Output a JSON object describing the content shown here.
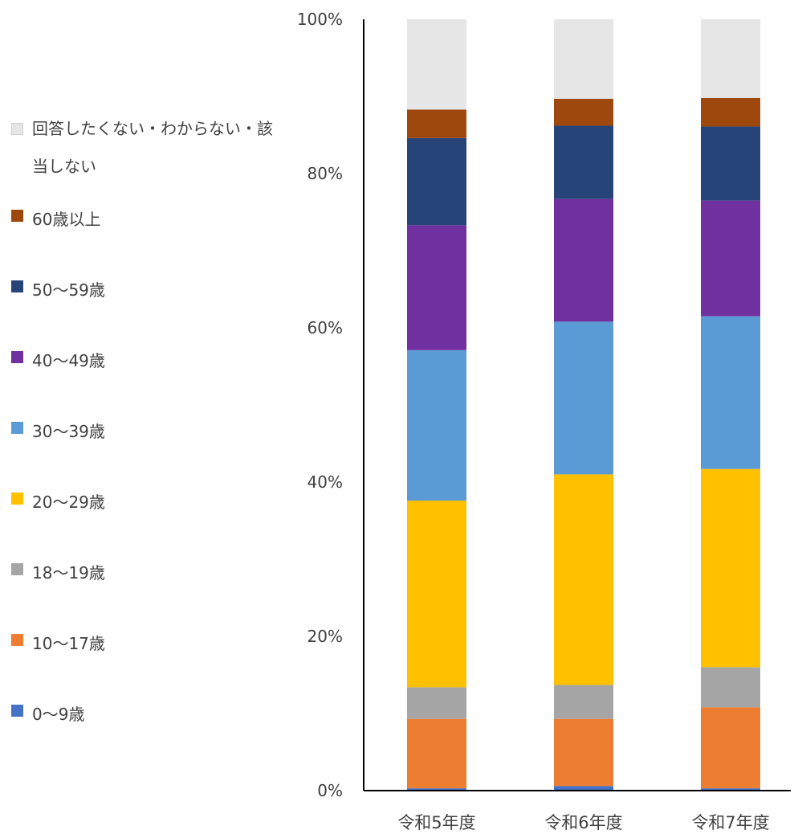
{
  "chart_data": {
    "type": "bar",
    "stacked": true,
    "percent": true,
    "categories": [
      "令和5年度",
      "令和6年度",
      "令和7年度"
    ],
    "ylim": [
      0,
      100
    ],
    "yticks": [
      "0%",
      "20%",
      "40%",
      "60%",
      "80%",
      "100%"
    ],
    "legend_position": "left",
    "series": [
      {
        "name": "0〜9歳",
        "color": "#4472C4",
        "values": [
          0.3,
          0.6,
          0.3
        ]
      },
      {
        "name": "10〜17歳",
        "color": "#ED7D31",
        "values": [
          9.0,
          8.7,
          10.5
        ]
      },
      {
        "name": "18〜19歳",
        "color": "#A5A5A5",
        "values": [
          4.1,
          4.4,
          5.2
        ]
      },
      {
        "name": "20〜29歳",
        "color": "#FFC000",
        "values": [
          24.2,
          27.3,
          25.7
        ]
      },
      {
        "name": "30〜39歳",
        "color": "#5B9BD5",
        "values": [
          19.5,
          19.8,
          19.8
        ]
      },
      {
        "name": "40〜49歳",
        "color": "#7030A0",
        "values": [
          16.2,
          15.9,
          15.0
        ]
      },
      {
        "name": "50〜59歳",
        "color": "#264478",
        "values": [
          11.3,
          9.5,
          9.6
        ]
      },
      {
        "name": "60歳以上",
        "color": "#9E480E",
        "values": [
          3.7,
          3.5,
          3.7
        ]
      },
      {
        "name": "回答したくない・わからない・該当しない",
        "color": "#E7E6E6",
        "values": [
          11.7,
          10.3,
          10.2
        ]
      }
    ]
  }
}
